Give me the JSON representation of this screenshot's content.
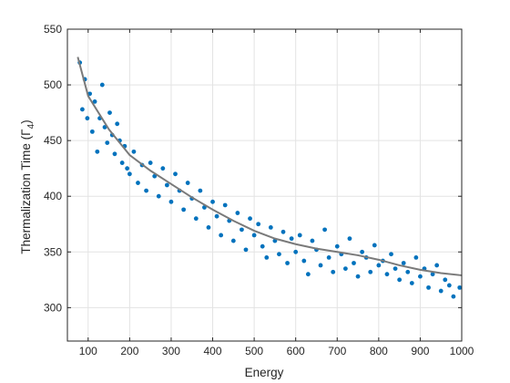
{
  "chart_data": {
    "type": "scatter",
    "title": "",
    "xlabel": "Energy",
    "ylabel_main": "Thermalization Time (",
    "ylabel_symbol": "Γ",
    "ylabel_subscript": "4",
    "ylabel_close": ")",
    "xlim": [
      50,
      1000
    ],
    "ylim": [
      270,
      550
    ],
    "x_ticks": [
      100,
      200,
      300,
      400,
      500,
      600,
      700,
      800,
      900,
      1000
    ],
    "y_ticks": [
      300,
      350,
      400,
      450,
      500,
      550
    ],
    "grid": true,
    "legend": "none",
    "colors": {
      "points": "#0072BD",
      "fit": "#7a7a7a",
      "grid": "#e3e3e3",
      "axis": "#262626"
    },
    "fit_curve": {
      "x": [
        75,
        100,
        150,
        200,
        250,
        300,
        350,
        400,
        450,
        500,
        550,
        600,
        650,
        700,
        750,
        800,
        850,
        900,
        950,
        1000
      ],
      "y": [
        525,
        490,
        460,
        437,
        423,
        411,
        399,
        388,
        378,
        369,
        362,
        357,
        353,
        350,
        347,
        343,
        338,
        334,
        331,
        329
      ]
    },
    "series": [
      {
        "marker": "dot",
        "x": [
          80,
          86,
          92,
          98,
          104,
          110,
          116,
          122,
          128,
          134,
          140,
          146,
          152,
          158,
          164,
          170,
          176,
          182,
          188,
          194,
          200,
          210,
          220,
          230,
          240,
          250,
          260,
          270,
          280,
          290,
          300,
          310,
          320,
          330,
          340,
          350,
          360,
          370,
          380,
          390,
          400,
          410,
          420,
          430,
          440,
          450,
          460,
          470,
          480,
          490,
          500,
          510,
          520,
          530,
          540,
          550,
          560,
          570,
          580,
          590,
          600,
          610,
          620,
          630,
          640,
          650,
          660,
          670,
          680,
          690,
          700,
          710,
          720,
          730,
          740,
          750,
          760,
          770,
          780,
          790,
          800,
          810,
          820,
          830,
          840,
          850,
          860,
          870,
          880,
          890,
          900,
          910,
          920,
          930,
          940,
          950,
          960,
          970,
          980,
          995
        ],
        "y": [
          520,
          478,
          505,
          470,
          492,
          458,
          485,
          440,
          470,
          500,
          462,
          448,
          475,
          455,
          438,
          465,
          450,
          430,
          445,
          425,
          420,
          440,
          412,
          428,
          405,
          430,
          418,
          400,
          425,
          410,
          395,
          420,
          405,
          388,
          412,
          398,
          380,
          405,
          390,
          372,
          395,
          382,
          365,
          392,
          378,
          360,
          385,
          370,
          352,
          380,
          365,
          375,
          355,
          345,
          372,
          360,
          348,
          368,
          340,
          362,
          350,
          365,
          342,
          330,
          360,
          352,
          338,
          370,
          345,
          332,
          355,
          348,
          335,
          362,
          340,
          328,
          350,
          345,
          332,
          356,
          338,
          342,
          330,
          348,
          335,
          325,
          340,
          332,
          322,
          345,
          328,
          335,
          318,
          330,
          338,
          315,
          325,
          320,
          310,
          318
        ]
      }
    ]
  }
}
